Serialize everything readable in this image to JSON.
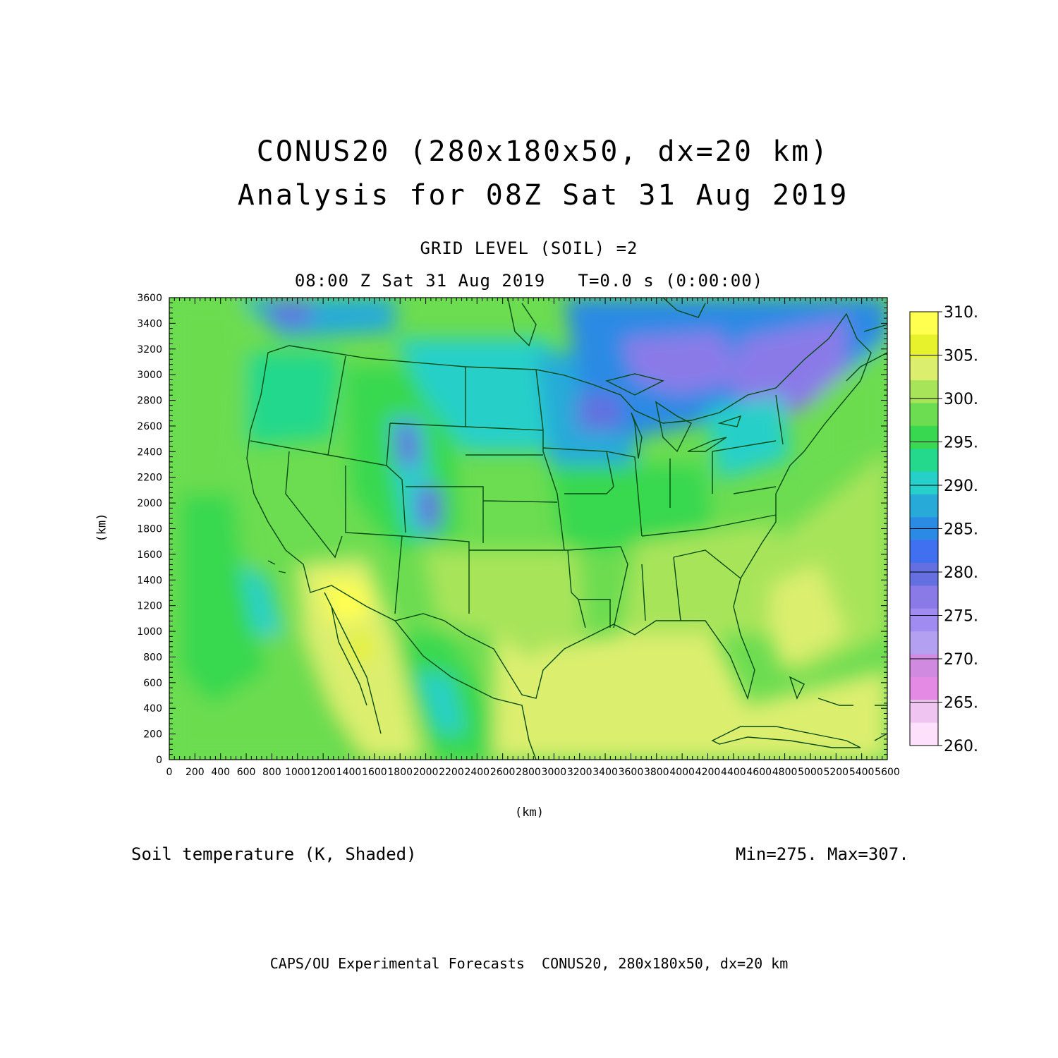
{
  "title_line1": "CONUS20 (280x180x50, dx=20 km)",
  "title_line2": "Analysis for 08Z Sat 31 Aug 2019",
  "grid_level": "GRID LEVEL (SOIL) =2",
  "time_line": "08:00 Z Sat 31 Aug 2019   T=0.0 s (0:00:00)",
  "x_axis": {
    "label": "(km)",
    "ticks": [
      "0",
      "200",
      "400",
      "600",
      "800",
      "1000",
      "1200",
      "1400",
      "1600",
      "1800",
      "2000",
      "2200",
      "2400",
      "2600",
      "2800",
      "3000",
      "3200",
      "3400",
      "3600",
      "3800",
      "4000",
      "4200",
      "4400",
      "4600",
      "4800",
      "5000",
      "5200",
      "5400",
      "5600"
    ],
    "range": [
      0,
      5600
    ]
  },
  "y_axis": {
    "label": "(km)",
    "ticks": [
      "0",
      "200",
      "400",
      "600",
      "800",
      "1000",
      "1200",
      "1400",
      "1600",
      "1800",
      "2000",
      "2200",
      "2400",
      "2600",
      "2800",
      "3000",
      "3200",
      "3400",
      "3600"
    ],
    "range": [
      0,
      3600
    ]
  },
  "field_label": "Soil temperature (K, Shaded)",
  "min_max": "Min=275. Max=307.",
  "footer": "CAPS/OU Experimental Forecasts  CONUS20, 280x180x50, dx=20 km",
  "colorbar": {
    "labels": [
      "310.",
      "305.",
      "300.",
      "295.",
      "290.",
      "285.",
      "280.",
      "275.",
      "270.",
      "265.",
      "260."
    ],
    "colors_top_to_bottom": [
      "#ffff50",
      "#e8f22c",
      "#dcee6e",
      "#a8e45a",
      "#6cdc50",
      "#38d850",
      "#24d88c",
      "#26d0c8",
      "#28aad8",
      "#2a8ae4",
      "#4070f0",
      "#6470e0",
      "#8a7ae8",
      "#a08cf0",
      "#b4a0f0",
      "#d08ae0",
      "#e48ae4",
      "#f0c4f0",
      "#fce0fc"
    ]
  }
}
